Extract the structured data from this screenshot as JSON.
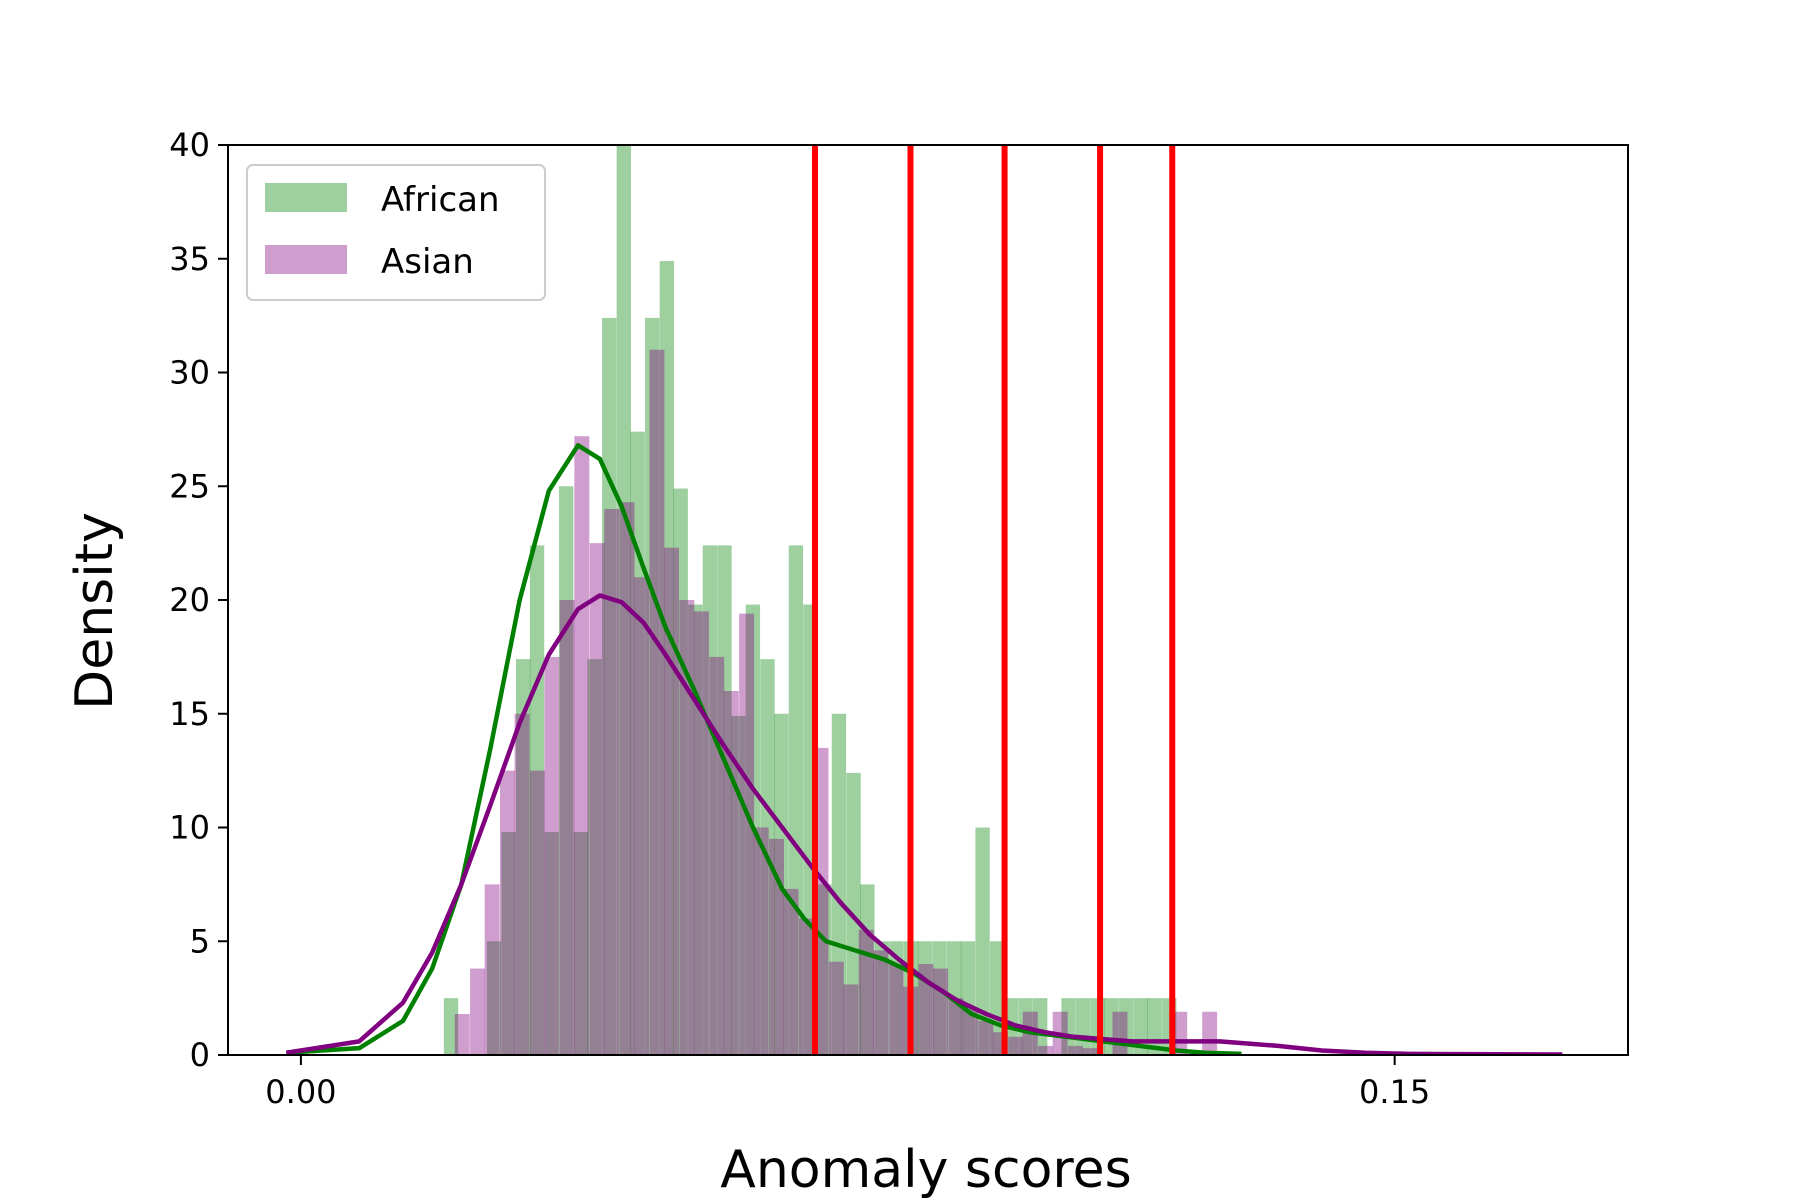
{
  "chart_data": {
    "type": "histogram",
    "title": "",
    "xlabel": "Anomaly scores",
    "ylabel": "Density",
    "xlim": [
      -0.01,
      0.182
    ],
    "ylim": [
      0,
      40
    ],
    "xticks": [
      0.0,
      0.15
    ],
    "xtick_labels": [
      "0.00",
      "0.15"
    ],
    "yticks": [
      0,
      5,
      10,
      15,
      20,
      25,
      30,
      35,
      40
    ],
    "ytick_labels": [
      "0",
      "5",
      "10",
      "15",
      "20",
      "25",
      "30",
      "35",
      "40"
    ],
    "grid": false,
    "legend_position": "top-left",
    "series": [
      {
        "name": "African",
        "color": "#008000",
        "bin_width": 0.00197,
        "bins": [
          [
            0.0196,
            2.5
          ],
          [
            0.0216,
            0
          ],
          [
            0.0236,
            0
          ],
          [
            0.0255,
            5
          ],
          [
            0.0275,
            9.8
          ],
          [
            0.0295,
            17.4
          ],
          [
            0.0314,
            22.4
          ],
          [
            0.0334,
            9.8
          ],
          [
            0.0354,
            25
          ],
          [
            0.0374,
            9.8
          ],
          [
            0.0393,
            17.4
          ],
          [
            0.0413,
            32.4
          ],
          [
            0.0433,
            40
          ],
          [
            0.0452,
            27.4
          ],
          [
            0.0472,
            32.4
          ],
          [
            0.0492,
            34.9
          ],
          [
            0.0511,
            24.9
          ],
          [
            0.0531,
            19.8
          ],
          [
            0.0551,
            22.4
          ],
          [
            0.0571,
            22.4
          ],
          [
            0.059,
            14.9
          ],
          [
            0.061,
            19.8
          ],
          [
            0.063,
            17.4
          ],
          [
            0.0649,
            15
          ],
          [
            0.0669,
            22.4
          ],
          [
            0.0689,
            19.8
          ],
          [
            0.0708,
            7.5
          ],
          [
            0.0728,
            15
          ],
          [
            0.0748,
            12.4
          ],
          [
            0.0767,
            7.5
          ],
          [
            0.0787,
            5
          ],
          [
            0.0807,
            5
          ],
          [
            0.0827,
            5
          ],
          [
            0.0846,
            5
          ],
          [
            0.0866,
            5
          ],
          [
            0.0886,
            5
          ],
          [
            0.0905,
            5
          ],
          [
            0.0925,
            10
          ],
          [
            0.0945,
            5
          ],
          [
            0.0964,
            2.5
          ],
          [
            0.0984,
            2.5
          ],
          [
            0.1004,
            2.5
          ],
          [
            0.1024,
            0
          ],
          [
            0.1043,
            2.5
          ],
          [
            0.1063,
            2.5
          ],
          [
            0.1083,
            2.5
          ],
          [
            0.1102,
            2.5
          ],
          [
            0.1122,
            2.5
          ],
          [
            0.1142,
            2.5
          ],
          [
            0.1161,
            2.5
          ],
          [
            0.1181,
            2.5
          ]
        ],
        "kde": [
          [
            -0.002,
            0.1
          ],
          [
            0.008,
            0.3
          ],
          [
            0.014,
            1.5
          ],
          [
            0.018,
            3.8
          ],
          [
            0.022,
            7.5
          ],
          [
            0.026,
            13.5
          ],
          [
            0.03,
            20.0
          ],
          [
            0.034,
            24.8
          ],
          [
            0.038,
            26.8
          ],
          [
            0.041,
            26.2
          ],
          [
            0.044,
            24.1
          ],
          [
            0.047,
            21.4
          ],
          [
            0.05,
            18.8
          ],
          [
            0.054,
            16.0
          ],
          [
            0.058,
            13.0
          ],
          [
            0.062,
            10.0
          ],
          [
            0.066,
            7.3
          ],
          [
            0.069,
            6.0
          ],
          [
            0.072,
            5.0
          ],
          [
            0.076,
            4.6
          ],
          [
            0.08,
            4.2
          ],
          [
            0.084,
            3.6
          ],
          [
            0.088,
            2.8
          ],
          [
            0.092,
            1.8
          ],
          [
            0.096,
            1.3
          ],
          [
            0.1,
            1.0
          ],
          [
            0.105,
            0.8
          ],
          [
            0.11,
            0.6
          ],
          [
            0.115,
            0.4
          ],
          [
            0.12,
            0.2
          ],
          [
            0.124,
            0.1
          ],
          [
            0.129,
            0.05
          ]
        ]
      },
      {
        "name": "Asian",
        "color": "#800080",
        "bin_width": 0.00205,
        "bins": [
          [
            0.0211,
            1.8
          ],
          [
            0.0232,
            3.8
          ],
          [
            0.0252,
            7.5
          ],
          [
            0.0273,
            12.5
          ],
          [
            0.0293,
            15
          ],
          [
            0.0314,
            12.5
          ],
          [
            0.0334,
            17.5
          ],
          [
            0.0355,
            20
          ],
          [
            0.0375,
            27.2
          ],
          [
            0.0396,
            22.5
          ],
          [
            0.0416,
            24
          ],
          [
            0.0437,
            24.3
          ],
          [
            0.0457,
            21
          ],
          [
            0.0478,
            31
          ],
          [
            0.0498,
            22.3
          ],
          [
            0.0519,
            20
          ],
          [
            0.0539,
            19.5
          ],
          [
            0.056,
            17.5
          ],
          [
            0.058,
            16
          ],
          [
            0.0601,
            19.4
          ],
          [
            0.0621,
            10
          ],
          [
            0.0642,
            9.5
          ],
          [
            0.0662,
            7.3
          ],
          [
            0.0683,
            6.0
          ],
          [
            0.0703,
            13.5
          ],
          [
            0.0724,
            4.1
          ],
          [
            0.0744,
            3.1
          ],
          [
            0.0765,
            5.5
          ],
          [
            0.0785,
            4.6
          ],
          [
            0.0806,
            4.0
          ],
          [
            0.0826,
            3.0
          ],
          [
            0.0847,
            4.0
          ],
          [
            0.0867,
            3.8
          ],
          [
            0.0888,
            2.5
          ],
          [
            0.0908,
            2.0
          ],
          [
            0.0929,
            1.5
          ],
          [
            0.0949,
            1.0
          ],
          [
            0.097,
            0.8
          ],
          [
            0.099,
            1.9
          ],
          [
            0.1011,
            0.4
          ],
          [
            0.1031,
            1.9
          ],
          [
            0.1052,
            0.4
          ],
          [
            0.1072,
            0.3
          ],
          [
            0.1093,
            0
          ],
          [
            0.1113,
            1.9
          ],
          [
            0.1134,
            0
          ],
          [
            0.1154,
            0
          ],
          [
            0.1175,
            0
          ],
          [
            0.1195,
            1.9
          ],
          [
            0.1216,
            0
          ],
          [
            0.1236,
            1.9
          ]
        ],
        "kde": [
          [
            -0.002,
            0.1
          ],
          [
            0.008,
            0.6
          ],
          [
            0.014,
            2.3
          ],
          [
            0.018,
            4.5
          ],
          [
            0.022,
            7.5
          ],
          [
            0.026,
            11.0
          ],
          [
            0.03,
            14.6
          ],
          [
            0.034,
            17.6
          ],
          [
            0.038,
            19.6
          ],
          [
            0.041,
            20.2
          ],
          [
            0.044,
            19.9
          ],
          [
            0.047,
            19.0
          ],
          [
            0.05,
            17.6
          ],
          [
            0.054,
            15.6
          ],
          [
            0.058,
            13.6
          ],
          [
            0.062,
            11.7
          ],
          [
            0.066,
            10.0
          ],
          [
            0.07,
            8.3
          ],
          [
            0.074,
            6.7
          ],
          [
            0.078,
            5.3
          ],
          [
            0.082,
            4.2
          ],
          [
            0.086,
            3.2
          ],
          [
            0.09,
            2.4
          ],
          [
            0.094,
            1.8
          ],
          [
            0.098,
            1.3
          ],
          [
            0.102,
            1.0
          ],
          [
            0.106,
            0.8
          ],
          [
            0.11,
            0.7
          ],
          [
            0.114,
            0.6
          ],
          [
            0.118,
            0.6
          ],
          [
            0.122,
            0.6
          ],
          [
            0.126,
            0.6
          ],
          [
            0.13,
            0.5
          ],
          [
            0.134,
            0.4
          ],
          [
            0.14,
            0.2
          ],
          [
            0.146,
            0.1
          ],
          [
            0.152,
            0.05
          ],
          [
            0.173,
            0.02
          ]
        ]
      }
    ],
    "vertical_lines": {
      "color": "#ff0000",
      "x": [
        0.0705,
        0.0836,
        0.0965,
        0.1096,
        0.1195
      ]
    }
  }
}
